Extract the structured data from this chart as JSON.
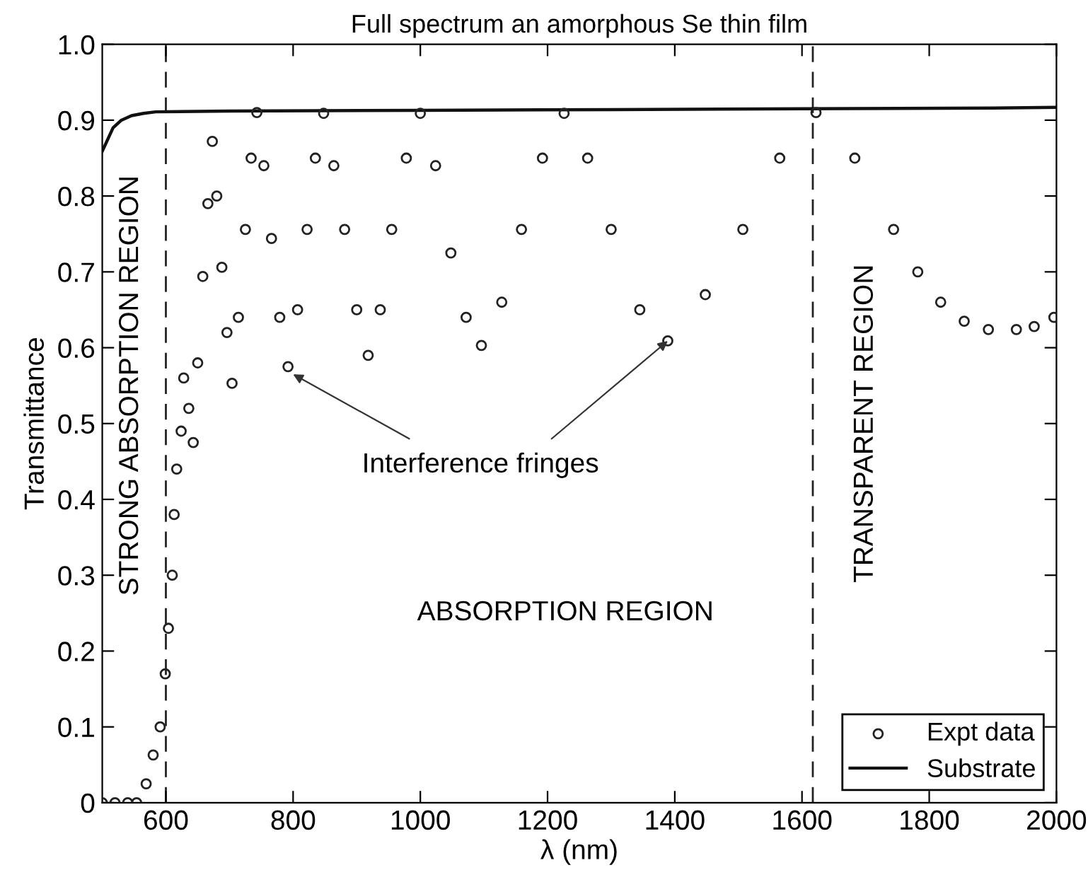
{
  "chart_data": {
    "type": "scatter",
    "title": "Full spectrum an amorphous Se thin film",
    "xlabel": "λ (nm)",
    "ylabel": "Transmittance",
    "xlim": [
      500,
      2000
    ],
    "ylim": [
      0,
      1
    ],
    "xticks": [
      600,
      800,
      1000,
      1200,
      1400,
      1600,
      1800,
      2000
    ],
    "yticks": [
      {
        "value": 0,
        "label": "0"
      },
      0.1,
      0.2,
      0.3,
      0.4,
      0.5,
      0.6,
      0.7,
      0.8,
      0.9,
      {
        "value": 1.0,
        "label": "1.0"
      }
    ],
    "grid": false,
    "legend": "bottom right",
    "series": [
      {
        "name": "Expt data",
        "marker": "circle",
        "color": "#222222",
        "x": [
          500,
          520,
          540,
          554,
          569,
          580,
          591,
          599,
          604,
          610,
          613,
          617,
          624,
          628,
          636,
          643,
          650,
          658,
          666,
          673,
          680,
          688,
          696,
          704,
          714,
          725,
          734,
          743,
          754,
          766,
          779,
          792,
          807,
          822,
          835,
          848,
          864,
          881,
          900,
          918,
          937,
          955,
          978,
          1000,
          1024,
          1048,
          1072,
          1096,
          1128,
          1159,
          1192,
          1226,
          1263,
          1300,
          1345,
          1389,
          1448,
          1507,
          1565,
          1622,
          1683,
          1744,
          1782,
          1818,
          1855,
          1893,
          1937,
          1965,
          1996
        ],
        "values": [
          0,
          0,
          0,
          0,
          0.025,
          0.063,
          0.1,
          0.17,
          0.23,
          0.3,
          0.38,
          0.44,
          0.49,
          0.56,
          0.52,
          0.475,
          0.58,
          0.694,
          0.79,
          0.872,
          0.8,
          0.706,
          0.62,
          0.553,
          0.64,
          0.756,
          0.85,
          0.91,
          0.84,
          0.744,
          0.64,
          0.575,
          0.65,
          0.756,
          0.85,
          0.909,
          0.84,
          0.756,
          0.65,
          0.59,
          0.65,
          0.756,
          0.85,
          0.909,
          0.84,
          0.725,
          0.64,
          0.603,
          0.66,
          0.756,
          0.85,
          0.909,
          0.85,
          0.756,
          0.65,
          0.609,
          0.67,
          0.756,
          0.85,
          0.91,
          0.85,
          0.756,
          0.7,
          0.66,
          0.635,
          0.624,
          0.624,
          0.628,
          0.64
        ]
      },
      {
        "name": "Substrate",
        "type": "line",
        "line_style": "solid",
        "color": "#111111",
        "x": [
          500,
          517,
          530,
          546,
          565,
          584,
          700,
          1000,
          1300,
          1600,
          1900,
          2000
        ],
        "values": [
          0.859,
          0.89,
          0.9,
          0.906,
          0.909,
          0.911,
          0.912,
          0.913,
          0.914,
          0.915,
          0.916,
          0.917
        ]
      }
    ],
    "ref_lines": [
      {
        "axis": "x",
        "value": 600,
        "line_style": "dashed",
        "color": "#222222"
      },
      {
        "axis": "x",
        "value": 1617,
        "line_style": "dashed",
        "color": "#222222"
      }
    ],
    "annotations": [
      "STRONG ABSORPTION REGION",
      "ABSORPTION REGION",
      "TRANSPARENT REGION",
      {
        "text": "Interference fringes",
        "x": 800,
        "y": 0.565
      }
    ]
  }
}
